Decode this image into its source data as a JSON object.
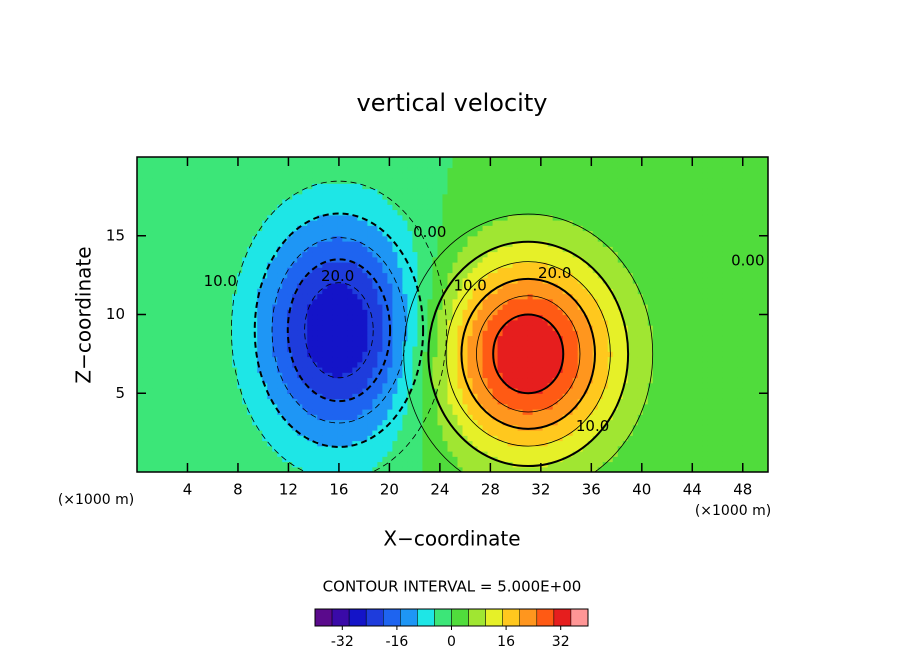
{
  "chart_data": {
    "type": "contour",
    "title": "vertical velocity",
    "xlabel": "X−coordinate",
    "ylabel": "Z−coordinate",
    "x_unit": "(×1000 m)",
    "y_unit": "(×1000 m)",
    "xlim": [
      0,
      50
    ],
    "ylim": [
      0,
      20
    ],
    "xticks": [
      4,
      8,
      12,
      16,
      20,
      24,
      28,
      32,
      36,
      40,
      44,
      48
    ],
    "yticks": [
      5,
      10,
      15
    ],
    "features": [
      {
        "x": 16,
        "y": 9,
        "peak": -30,
        "sx": 4.5,
        "sy": 5
      },
      {
        "x": 31,
        "y": 7.5,
        "peak": 35,
        "sx": 5,
        "sy": 4.5
      }
    ],
    "contour_interval": 5,
    "contour_interval_label": "CONTOUR INTERVAL = 5.000E+00",
    "contour_labels": [
      {
        "label": "10.0",
        "x": 6.6,
        "y": 12.1
      },
      {
        "label": "20.0",
        "x": 15.9,
        "y": 12.4
      },
      {
        "label": "0.00",
        "x": 23.2,
        "y": 15.2
      },
      {
        "label": "10.0",
        "x": 26.4,
        "y": 11.8
      },
      {
        "label": "20.0",
        "x": 33.1,
        "y": 12.6
      },
      {
        "label": "0.00",
        "x": 48.4,
        "y": 13.4
      },
      {
        "label": "10.0",
        "x": 36.1,
        "y": 2.9
      }
    ],
    "colorbar": {
      "lim": [
        -40,
        40
      ],
      "ticks": [
        -32,
        -16,
        0,
        16,
        32
      ]
    },
    "colormap": [
      "#5a0a8c",
      "#3a0aa8",
      "#1414c8",
      "#1e3cdc",
      "#1e64f0",
      "#1e96f5",
      "#1ee6e6",
      "#3ce678",
      "#50dc3c",
      "#a0e632",
      "#e6f028",
      "#ffc81e",
      "#ff961e",
      "#ff5a14",
      "#e61e1e",
      "#ff9696"
    ]
  }
}
